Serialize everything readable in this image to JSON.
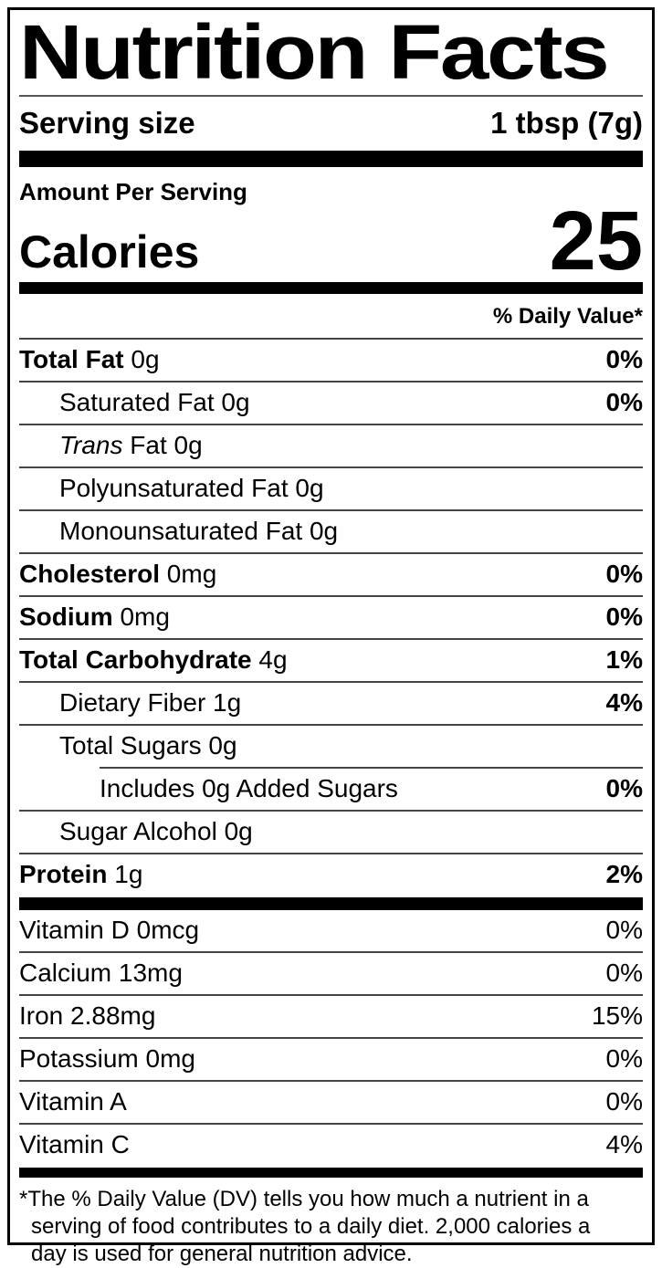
{
  "label": {
    "title": "Nutrition Facts",
    "serving_size": {
      "label": "Serving size",
      "value": "1 tbsp (7g)"
    },
    "amount_per_serving": "Amount Per Serving",
    "calories": {
      "label": "Calories",
      "value": "25"
    },
    "daily_value_header": "% Daily Value*",
    "nutrients": [
      {
        "bold": "Total Fat",
        "rest": " 0g",
        "dv": "0%",
        "indent": 0
      },
      {
        "rest": "Saturated Fat 0g",
        "dv": "0%",
        "indent": 1
      },
      {
        "italic": "Trans",
        "rest": " Fat 0g",
        "dv": "",
        "indent": 1
      },
      {
        "rest": "Polyunsaturated Fat 0g",
        "dv": "",
        "indent": 1
      },
      {
        "rest": "Monounsaturated Fat 0g",
        "dv": "",
        "indent": 1
      },
      {
        "bold": "Cholesterol",
        "rest": " 0mg",
        "dv": "0%",
        "indent": 0
      },
      {
        "bold": "Sodium",
        "rest": " 0mg",
        "dv": "0%",
        "indent": 0
      },
      {
        "bold": "Total Carbohydrate",
        "rest": " 4g",
        "dv": "1%",
        "indent": 0
      },
      {
        "rest": "Dietary Fiber 1g",
        "dv": "4%",
        "indent": 1
      },
      {
        "rest": "Total Sugars 0g",
        "dv": "",
        "indent": 1
      },
      {
        "rest": "Includes 0g Added Sugars",
        "dv": "0%",
        "indent": 2
      },
      {
        "rest": "Sugar Alcohol 0g",
        "dv": "",
        "indent": 1
      },
      {
        "bold": "Protein",
        "rest": " 1g",
        "dv": "2%",
        "indent": 0
      }
    ],
    "micronutrients": [
      {
        "name": "Vitamin D 0mcg",
        "dv": "0%"
      },
      {
        "name": "Calcium 13mg",
        "dv": "0%"
      },
      {
        "name": "Iron 2.88mg",
        "dv": "15%"
      },
      {
        "name": "Potassium 0mg",
        "dv": "0%"
      },
      {
        "name": "Vitamin A",
        "dv": "0%"
      },
      {
        "name": "Vitamin C",
        "dv": "4%"
      }
    ],
    "footnote_lines": [
      "*The % Daily Value (DV) tells you how much a nutrient in a",
      "serving of food contributes to a daily diet. 2,000 calories a",
      "day is used for general nutrition advice."
    ],
    "colors": {
      "text": "#000000",
      "background": "#ffffff",
      "border": "#000000",
      "divider": "#444444"
    }
  }
}
